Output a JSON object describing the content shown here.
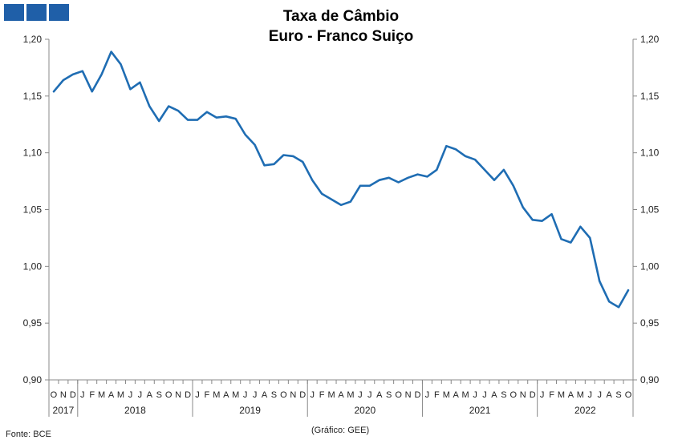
{
  "header": {
    "title_line1": "Taxa de Câmbio",
    "title_line2": "Euro - Franco Suiço",
    "logo_icon": "blue-squares-logo-icon",
    "logo_color": "#1f5fa8"
  },
  "footer": {
    "source": "Fonte: BCE",
    "credit": "(Gráfico: GEE)"
  },
  "chart_data": {
    "type": "line",
    "ylim": [
      0.9,
      1.2
    ],
    "yticks": [
      "0,90",
      "0,95",
      "1,00",
      "1,05",
      "1,10",
      "1,15",
      "1,20"
    ],
    "ytick_values": [
      0.9,
      0.95,
      1.0,
      1.05,
      1.1,
      1.15,
      1.2
    ],
    "grid": false,
    "line_color": "#1f6db3",
    "x": [
      "O",
      "N",
      "D",
      "J",
      "F",
      "M",
      "A",
      "M",
      "J",
      "J",
      "A",
      "S",
      "O",
      "N",
      "D",
      "J",
      "F",
      "M",
      "A",
      "M",
      "J",
      "J",
      "A",
      "S",
      "O",
      "N",
      "D",
      "J",
      "F",
      "M",
      "A",
      "M",
      "J",
      "J",
      "A",
      "S",
      "O",
      "N",
      "D",
      "J",
      "F",
      "M",
      "A",
      "M",
      "J",
      "J",
      "A",
      "S",
      "O",
      "N",
      "D",
      "J",
      "F",
      "M",
      "A",
      "M",
      "J",
      "J",
      "A",
      "S",
      "O"
    ],
    "years": [
      {
        "label": "2017",
        "start": 0,
        "end": 2
      },
      {
        "label": "2018",
        "start": 3,
        "end": 14
      },
      {
        "label": "2019",
        "start": 15,
        "end": 26
      },
      {
        "label": "2020",
        "start": 27,
        "end": 38
      },
      {
        "label": "2021",
        "start": 39,
        "end": 50
      },
      {
        "label": "2022",
        "start": 51,
        "end": 60
      }
    ],
    "series": [
      {
        "values": [
          1.154,
          1.164,
          1.169,
          1.172,
          1.154,
          1.169,
          1.189,
          1.178,
          1.156,
          1.162,
          1.141,
          1.128,
          1.141,
          1.137,
          1.129,
          1.129,
          1.136,
          1.131,
          1.132,
          1.13,
          1.116,
          1.107,
          1.089,
          1.09,
          1.098,
          1.097,
          1.092,
          1.076,
          1.064,
          1.059,
          1.054,
          1.057,
          1.071,
          1.071,
          1.076,
          1.078,
          1.074,
          1.078,
          1.081,
          1.079,
          1.085,
          1.106,
          1.103,
          1.097,
          1.094,
          1.085,
          1.076,
          1.085,
          1.071,
          1.052,
          1.041,
          1.04,
          1.046,
          1.024,
          1.021,
          1.035,
          1.025,
          0.987,
          0.969,
          0.964,
          0.979
        ]
      }
    ]
  }
}
